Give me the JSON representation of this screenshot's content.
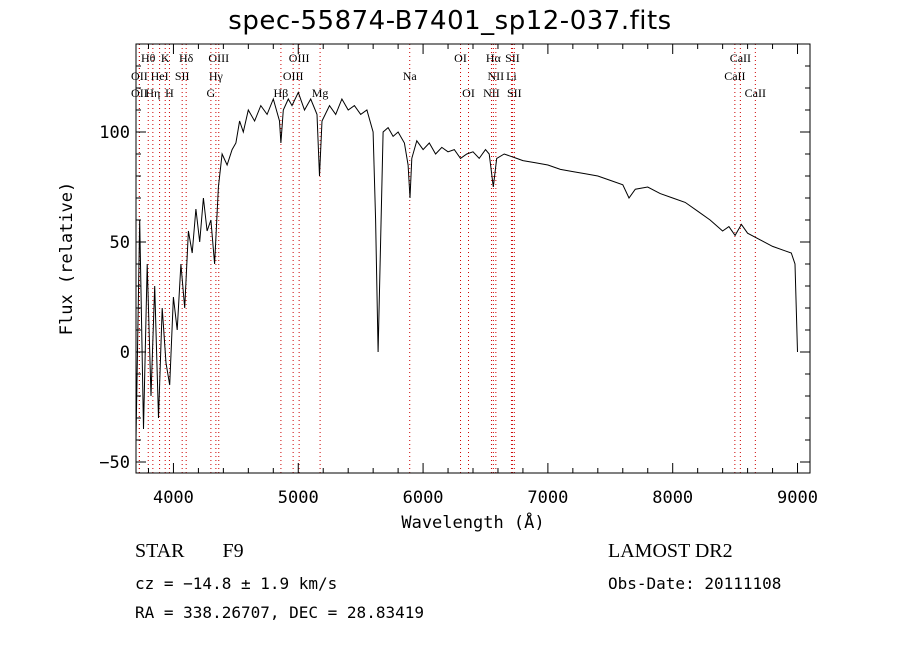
{
  "header": {
    "title": "spec-55874-B7401_sp12-037.fits"
  },
  "info": {
    "object_class": "STAR",
    "subclass": "F9",
    "survey": "LAMOST DR2",
    "cz": "cz = −14.8 ± 1.9 km/s",
    "obs_date": "Obs-Date: 20111108",
    "radec": "RA = 338.26707, DEC =  28.83419"
  },
  "chart_data": {
    "type": "line",
    "title": "spec-55874-B7401_sp12-037.fits",
    "xlabel": "Wavelength (Å)",
    "ylabel": "Flux (relative)",
    "xlim": [
      3700,
      9100
    ],
    "ylim": [
      -55,
      140
    ],
    "xticks": [
      4000,
      5000,
      6000,
      7000,
      8000,
      9000
    ],
    "yticks": [
      -50,
      0,
      50,
      100
    ],
    "grid": false,
    "line_color": "#000000",
    "marker_color": "#cc0000",
    "series": [
      {
        "values": [
          [
            3700,
            -40
          ],
          [
            3730,
            60
          ],
          [
            3760,
            -35
          ],
          [
            3790,
            40
          ],
          [
            3820,
            -20
          ],
          [
            3850,
            30
          ],
          [
            3880,
            -30
          ],
          [
            3910,
            20
          ],
          [
            3940,
            -5
          ],
          [
            3970,
            -15
          ],
          [
            4000,
            25
          ],
          [
            4030,
            10
          ],
          [
            4060,
            40
          ],
          [
            4090,
            20
          ],
          [
            4120,
            55
          ],
          [
            4150,
            45
          ],
          [
            4180,
            65
          ],
          [
            4210,
            50
          ],
          [
            4240,
            70
          ],
          [
            4270,
            55
          ],
          [
            4300,
            60
          ],
          [
            4330,
            40
          ],
          [
            4360,
            75
          ],
          [
            4390,
            90
          ],
          [
            4430,
            85
          ],
          [
            4470,
            92
          ],
          [
            4500,
            95
          ],
          [
            4530,
            105
          ],
          [
            4560,
            100
          ],
          [
            4600,
            110
          ],
          [
            4650,
            105
          ],
          [
            4700,
            112
          ],
          [
            4750,
            108
          ],
          [
            4800,
            115
          ],
          [
            4850,
            105
          ],
          [
            4861,
            95
          ],
          [
            4880,
            110
          ],
          [
            4920,
            115
          ],
          [
            4950,
            112
          ],
          [
            5000,
            118
          ],
          [
            5050,
            110
          ],
          [
            5100,
            115
          ],
          [
            5150,
            108
          ],
          [
            5170,
            80
          ],
          [
            5190,
            105
          ],
          [
            5250,
            112
          ],
          [
            5300,
            108
          ],
          [
            5350,
            115
          ],
          [
            5400,
            110
          ],
          [
            5450,
            112
          ],
          [
            5500,
            108
          ],
          [
            5550,
            110
          ],
          [
            5600,
            100
          ],
          [
            5620,
            60
          ],
          [
            5640,
            0
          ],
          [
            5660,
            50
          ],
          [
            5680,
            100
          ],
          [
            5720,
            102
          ],
          [
            5760,
            98
          ],
          [
            5800,
            100
          ],
          [
            5850,
            95
          ],
          [
            5880,
            85
          ],
          [
            5895,
            70
          ],
          [
            5910,
            88
          ],
          [
            5950,
            96
          ],
          [
            6000,
            92
          ],
          [
            6050,
            95
          ],
          [
            6100,
            90
          ],
          [
            6150,
            93
          ],
          [
            6200,
            91
          ],
          [
            6250,
            92
          ],
          [
            6300,
            88
          ],
          [
            6350,
            90
          ],
          [
            6400,
            91
          ],
          [
            6450,
            88
          ],
          [
            6500,
            92
          ],
          [
            6530,
            90
          ],
          [
            6563,
            75
          ],
          [
            6590,
            88
          ],
          [
            6650,
            90
          ],
          [
            6700,
            89
          ],
          [
            6750,
            88
          ],
          [
            6800,
            87
          ],
          [
            6900,
            86
          ],
          [
            7000,
            85
          ],
          [
            7100,
            83
          ],
          [
            7200,
            82
          ],
          [
            7300,
            81
          ],
          [
            7400,
            80
          ],
          [
            7500,
            78
          ],
          [
            7600,
            76
          ],
          [
            7650,
            70
          ],
          [
            7700,
            74
          ],
          [
            7800,
            75
          ],
          [
            7900,
            72
          ],
          [
            8000,
            70
          ],
          [
            8100,
            68
          ],
          [
            8200,
            64
          ],
          [
            8300,
            60
          ],
          [
            8400,
            55
          ],
          [
            8450,
            57
          ],
          [
            8500,
            53
          ],
          [
            8550,
            58
          ],
          [
            8600,
            54
          ],
          [
            8700,
            51
          ],
          [
            8800,
            48
          ],
          [
            8900,
            46
          ],
          [
            8950,
            45
          ],
          [
            8980,
            40
          ],
          [
            9000,
            0
          ]
        ]
      }
    ],
    "line_markers": [
      {
        "label": "Hθ",
        "x": 3798,
        "row": 0
      },
      {
        "label": "K",
        "x": 3934,
        "row": 0
      },
      {
        "label": "Hδ",
        "x": 4102,
        "row": 0
      },
      {
        "label": "OIII",
        "x": 4363,
        "row": 0
      },
      {
        "label": "OIII",
        "x": 5007,
        "row": 0
      },
      {
        "label": "OI",
        "x": 6300,
        "row": 0
      },
      {
        "label": "Hα",
        "x": 6563,
        "row": 0
      },
      {
        "label": "SII",
        "x": 6716,
        "row": 0
      },
      {
        "label": "CaII",
        "x": 8542,
        "row": 0
      },
      {
        "label": "OII",
        "x": 3727,
        "row": 1
      },
      {
        "label": "HeI",
        "x": 3889,
        "row": 1
      },
      {
        "label": "SII",
        "x": 4070,
        "row": 1
      },
      {
        "label": "Hγ",
        "x": 4340,
        "row": 1
      },
      {
        "label": "OIII",
        "x": 4959,
        "row": 1
      },
      {
        "label": "Na",
        "x": 5893,
        "row": 1
      },
      {
        "label": "NII",
        "x": 6583,
        "row": 1
      },
      {
        "label": "Li",
        "x": 6708,
        "row": 1
      },
      {
        "label": "CaII",
        "x": 8498,
        "row": 1
      },
      {
        "label": "OII",
        "x": 3727,
        "row": 2
      },
      {
        "label": "Hη",
        "x": 3835,
        "row": 2
      },
      {
        "label": "H",
        "x": 3968,
        "row": 2
      },
      {
        "label": "G",
        "x": 4300,
        "row": 2
      },
      {
        "label": "Hβ",
        "x": 4861,
        "row": 2
      },
      {
        "label": "Mg",
        "x": 5175,
        "row": 2
      },
      {
        "label": "OI",
        "x": 6364,
        "row": 2
      },
      {
        "label": "NII",
        "x": 6548,
        "row": 2
      },
      {
        "label": "SII",
        "x": 6731,
        "row": 2
      },
      {
        "label": "CaII",
        "x": 8662,
        "row": 2
      }
    ]
  }
}
